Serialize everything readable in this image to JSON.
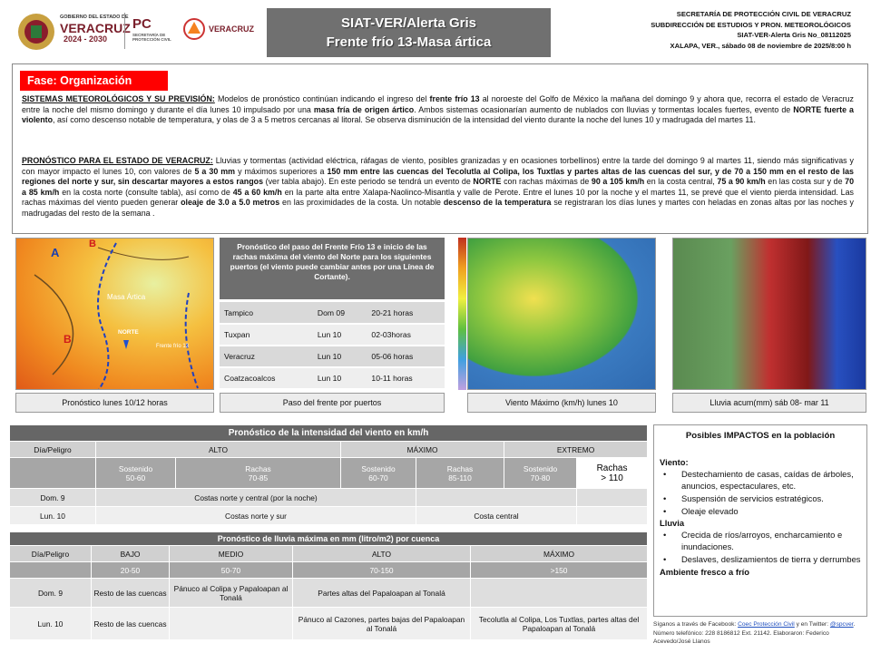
{
  "header": {
    "logos": [
      "GOBIERNO DEL ESTADO DE",
      "VERACRUZ",
      "2024 - 2030",
      "PC",
      "SECRETARÍA DE PROTECCIÓN CIVIL",
      "VERACRUZ"
    ],
    "title": [
      "SIAT-VER/Alerta Gris",
      "Frente frío 13-Masa ártica"
    ],
    "agency": [
      "SECRETARÍA DE PROTECCIÓN CIVIL DE VERACRUZ",
      "SUBDIRECCIÓN DE ESTUDIOS Y PRON. METEOROLÓGICOS",
      "SIAT-VER-Alerta Gris No_08112025",
      "XALAPA, VER., sábado 08 de noviembre de 2025/8:00 h"
    ]
  },
  "phase": "Fase: Organización",
  "paragraphs": [
    [
      {
        "text": "SISTEMAS METEOROLÓGICOS Y SU PREVISIÓN:",
        "style": "heading"
      },
      {
        "text": "  Modelos de pronóstico continúan indicando el ingreso del "
      },
      {
        "text": "frente frío 13",
        "style": "bold"
      },
      {
        "text": " al noroeste del Golfo de México la mañana del domingo 9 y ahora que, recorra el estado de Veracruz entre la noche del mismo domingo y durante el día lunes 10 impulsado por una "
      },
      {
        "text": "masa fría de origen ártico",
        "style": "bold"
      },
      {
        "text": ". Ambos sistemas ocasionarían aumento de nublados con lluvias y tormentas locales fuertes, evento de "
      },
      {
        "text": "NORTE fuerte a violento",
        "style": "bold"
      },
      {
        "text": ", así como descenso notable de temperatura, y olas de 3 a 5  metros cercanas al litoral. Se observa disminución de la intensidad del viento durante la noche del lunes 10 y madrugada del martes 11."
      }
    ],
    [
      {
        "text": "PRONÓSTICO PARA EL ESTADO DE VERACRUZ:",
        "style": "heading"
      },
      {
        "text": " Lluvias y tormentas (actividad eléctrica, ráfagas de viento, posibles granizadas y en ocasiones torbellinos) entre la tarde del domingo 9 al martes 11, siendo más significativas y con mayor impacto el lunes 10, con valores de "
      },
      {
        "text": "5 a 30 mm",
        "style": "bold"
      },
      {
        "text": " y máximos superiores a "
      },
      {
        "text": "150 mm entre las cuencas del Tecolutla al Colipa, los Tuxtlas y partes altas de las cuencas del sur, y de 70 a 150 mm en el resto de las regiones del norte y sur, sin descartar mayores a estos rangos",
        "style": "bold"
      },
      {
        "text": " (ver tabla abajo). En este periodo se tendrá un evento de "
      },
      {
        "text": "NORTE",
        "style": "bold"
      },
      {
        "text": " con rachas máximas de "
      },
      {
        "text": "90 a 105 km/h",
        "style": "bold"
      },
      {
        "text": " en la costa central, "
      },
      {
        "text": "75 a 90 km/h",
        "style": "bold"
      },
      {
        "text": " en las costa sur y de "
      },
      {
        "text": "70 a 85 km/h",
        "style": "bold"
      },
      {
        "text": " en la costa norte (consulte tabla), así como de "
      },
      {
        "text": "45 a 60 km/h",
        "style": "bold"
      },
      {
        "text": " en la parte alta entre Xalapa-Naolinco-Misantla y valle de Perote. Entre el lunes 10 por la noche y el martes 11, se prevé que el viento pierda intensidad. Las rachas máximas del viento pueden generar "
      },
      {
        "text": "oleaje de 3.0 a 5.0 metros",
        "style": "bold"
      },
      {
        "text": " en las proximidades de la costa. Un notable "
      },
      {
        "text": "descenso de la temperatura",
        "style": "bold"
      },
      {
        "text": " se registraran los días lunes y martes con heladas en zonas altas por las noches y madrugadas del resto de la semana ."
      }
    ]
  ],
  "panels": {
    "map_labels": [
      "A",
      "B",
      "B",
      "Masa Ártica",
      "NORTE",
      "Frente frío 13"
    ],
    "captions": [
      "Pronóstico lunes 10/12 horas",
      "Paso del frente por puertos",
      "Viento Máximo (km/h) lunes 10",
      "Lluvia acum(mm) sáb 08- mar 11"
    ],
    "ports": {
      "title": "Pronóstico del paso del Frente Frío 13 e inicio de las rachas máxima  del viento del Norte para los siguientes puertos (el viento puede cambiar antes por una Línea de Cortante).",
      "rows": [
        [
          "Tampico",
          "Dom 09",
          "20-21 horas"
        ],
        [
          "Tuxpan",
          "Lun 10",
          "02-03horas"
        ],
        [
          "Veracruz",
          "Lun 10",
          "05-06 horas"
        ],
        [
          "Coatzacoalcos",
          "Lun 10",
          "10-11 horas"
        ]
      ]
    }
  },
  "wind_table": {
    "title": "Pronóstico de la intensidad del viento en km/h",
    "header": [
      "Día/Peligro",
      "ALTO",
      "MÁXIMO",
      "EXTREMO"
    ],
    "sub": [
      "Sostenido\n50-60",
      "Rachas\n70-85",
      "Sostenido\n60-70",
      "Rachas\n85-110",
      "Sostenido\n70-80",
      "Rachas\n> 110"
    ],
    "rows": [
      [
        "Dom. 9",
        "Costas norte y central (por la noche)"
      ],
      [
        "Lun. 10",
        "Costas norte y sur",
        "Costa central"
      ]
    ]
  },
  "rain_table": {
    "title": "Pronóstico de lluvia máxima en mm (litro/m2) por cuenca",
    "header": [
      "Día/Peligro",
      "BAJO",
      "MEDIO",
      "ALTO",
      "MÁXIMO"
    ],
    "ranges": [
      "20-50",
      "50-70",
      "70-150",
      ">150"
    ],
    "rows": [
      [
        "Dom. 9",
        "Resto de las cuencas",
        "Pánuco al Colipa y Papaloapan al Tonalá",
        "Partes altas del Papaloapan al Tonalá"
      ],
      [
        "Lun. 10",
        "Resto de las cuencas",
        "Pánuco al Cazones, partes bajas del Papaloapan al Tonalá",
        "Tecolutla al Colipa, Los Tuxtlas, partes altas del Papaloapan al Tonalá"
      ]
    ]
  },
  "impacts": {
    "title": "Posibles IMPACTOS en la población",
    "sections": [
      {
        "heading": "Viento:",
        "items": [
          "Destechamiento de casas, caídas de árboles, anuncios, espectaculares, etc.",
          "Suspensión de servicios estratégicos.",
          "Oleaje elevado"
        ]
      },
      {
        "heading": "Lluvia",
        "items": [
          "Crecida de ríos/arroyos, encharcamiento e inundaciones.",
          "Deslaves, deslizamientos de tierra y derrumbes"
        ]
      }
    ],
    "closing": "Ambiente fresco a frío"
  },
  "footer": [
    {
      "text": "Síganos a través de Facebook: "
    },
    {
      "text": "Coec Protección Civil",
      "style": "link"
    },
    {
      "text": " y en Twitter: "
    },
    {
      "text": "@spcver",
      "style": "link"
    },
    {
      "text": ". Número telefónico: 228 8186812 Ext. 21142. Elaboraron: Federico Acevedo/José Llanos"
    }
  ]
}
